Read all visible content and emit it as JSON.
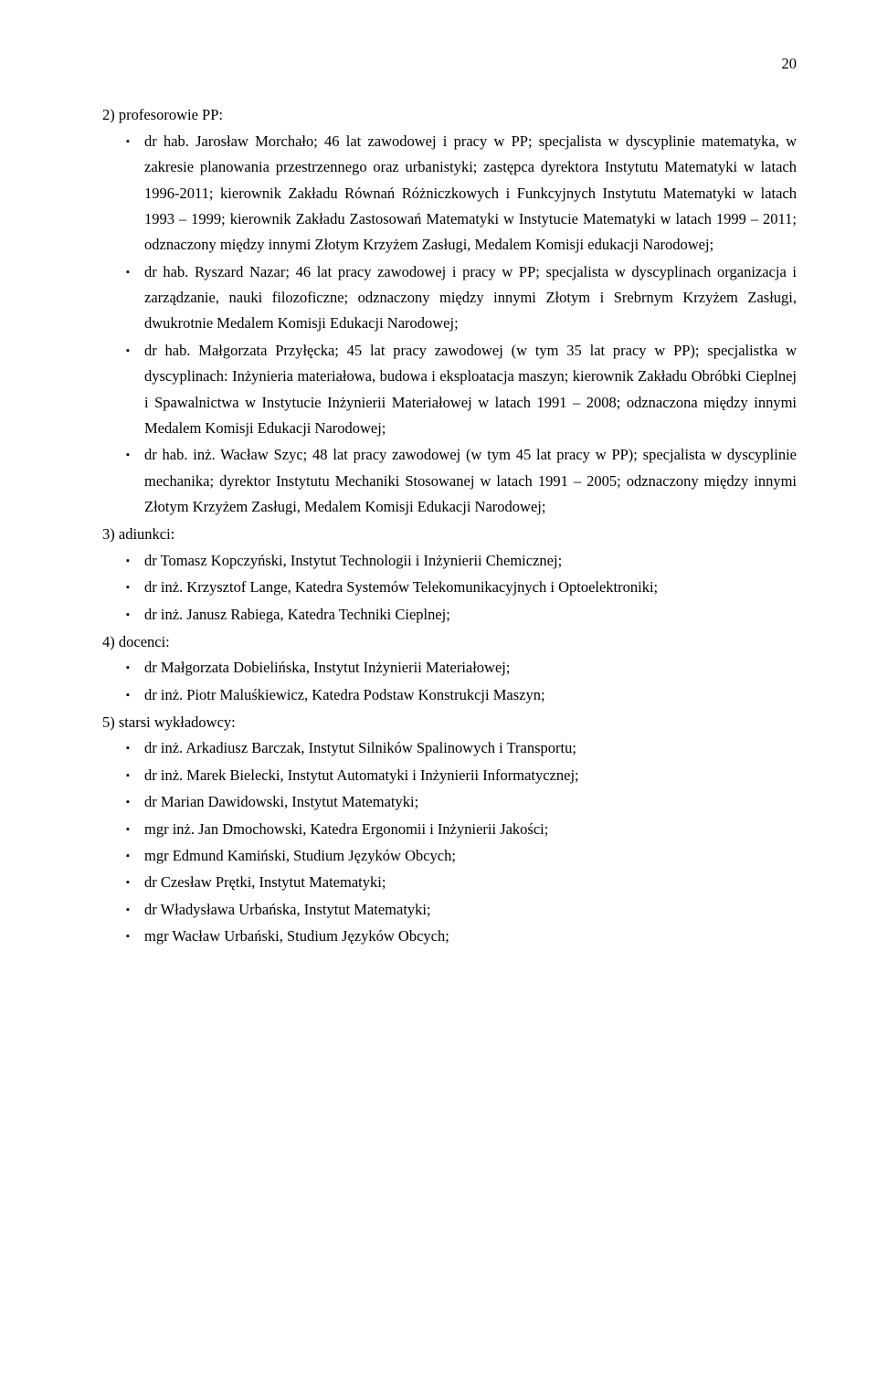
{
  "page_number": "20",
  "sections": [
    {
      "heading": "2)  profesorowie PP:",
      "items": [
        "dr hab. Jarosław Morchało; 46 lat zawodowej i pracy w PP; specjalista w dyscyplinie matematyka, w zakresie planowania przestrzennego oraz urbanistyki; zastępca dyrektora Instytutu Matematyki w latach 1996-2011; kierownik Zakładu Równań Różniczkowych i Funkcyjnych Instytutu Matematyki w latach 1993 – 1999; kierownik Zakładu Zastosowań Matematyki w Instytucie Matematyki w latach 1999 – 2011; odznaczony między innymi Złotym Krzyżem Zasługi, Medalem Komisji edukacji Narodowej;",
        "dr hab. Ryszard Nazar; 46 lat pracy zawodowej i pracy w PP; specjalista w dyscyplinach organizacja i zarządzanie, nauki filozoficzne; odznaczony między innymi Złotym i Srebrnym Krzyżem Zasługi, dwukrotnie Medalem Komisji Edukacji Narodowej;",
        "dr hab. Małgorzata Przyłęcka; 45 lat pracy zawodowej (w tym 35 lat pracy w PP); specjalistka w dyscyplinach: Inżynieria materiałowa, budowa i eksploatacja maszyn; kierownik Zakładu Obróbki Cieplnej i Spawalnictwa w Instytucie Inżynierii Materiałowej w latach 1991 – 2008; odznaczona między innymi Medalem Komisji Edukacji Narodowej;",
        "dr hab. inż. Wacław Szyc; 48 lat pracy zawodowej (w tym 45 lat pracy w PP); specjalista w dyscyplinie mechanika; dyrektor Instytutu Mechaniki Stosowanej w latach 1991 – 2005; odznaczony między innymi Złotym Krzyżem Zasługi, Medalem Komisji Edukacji Narodowej;"
      ]
    },
    {
      "heading": "3)  adiunkci:",
      "items": [
        "dr Tomasz Kopczyński, Instytut Technologii i Inżynierii Chemicznej;",
        "dr inż. Krzysztof Lange, Katedra Systemów Telekomunikacyjnych i Optoelektroniki;",
        "dr inż. Janusz Rabiega, Katedra Techniki Cieplnej;"
      ]
    },
    {
      "heading": "4)  docenci:",
      "items": [
        "dr Małgorzata Dobielińska, Instytut Inżynierii Materiałowej;",
        "dr inż. Piotr Maluśkiewicz, Katedra Podstaw Konstrukcji Maszyn;"
      ]
    },
    {
      "heading": "5)  starsi wykładowcy:",
      "items": [
        "dr inż. Arkadiusz Barczak, Instytut Silników Spalinowych i Transportu;",
        "dr inż. Marek Bielecki, Instytut Automatyki i Inżynierii Informatycznej;",
        "dr Marian Dawidowski, Instytut Matematyki;",
        "mgr inż. Jan Dmochowski, Katedra Ergonomii i Inżynierii Jakości;",
        "mgr Edmund Kamiński, Studium Języków Obcych;",
        "dr Czesław Prętki, Instytut Matematyki;",
        "dr Władysława Urbańska, Instytut Matematyki;",
        "mgr Wacław Urbański, Studium Języków Obcych;"
      ]
    }
  ]
}
